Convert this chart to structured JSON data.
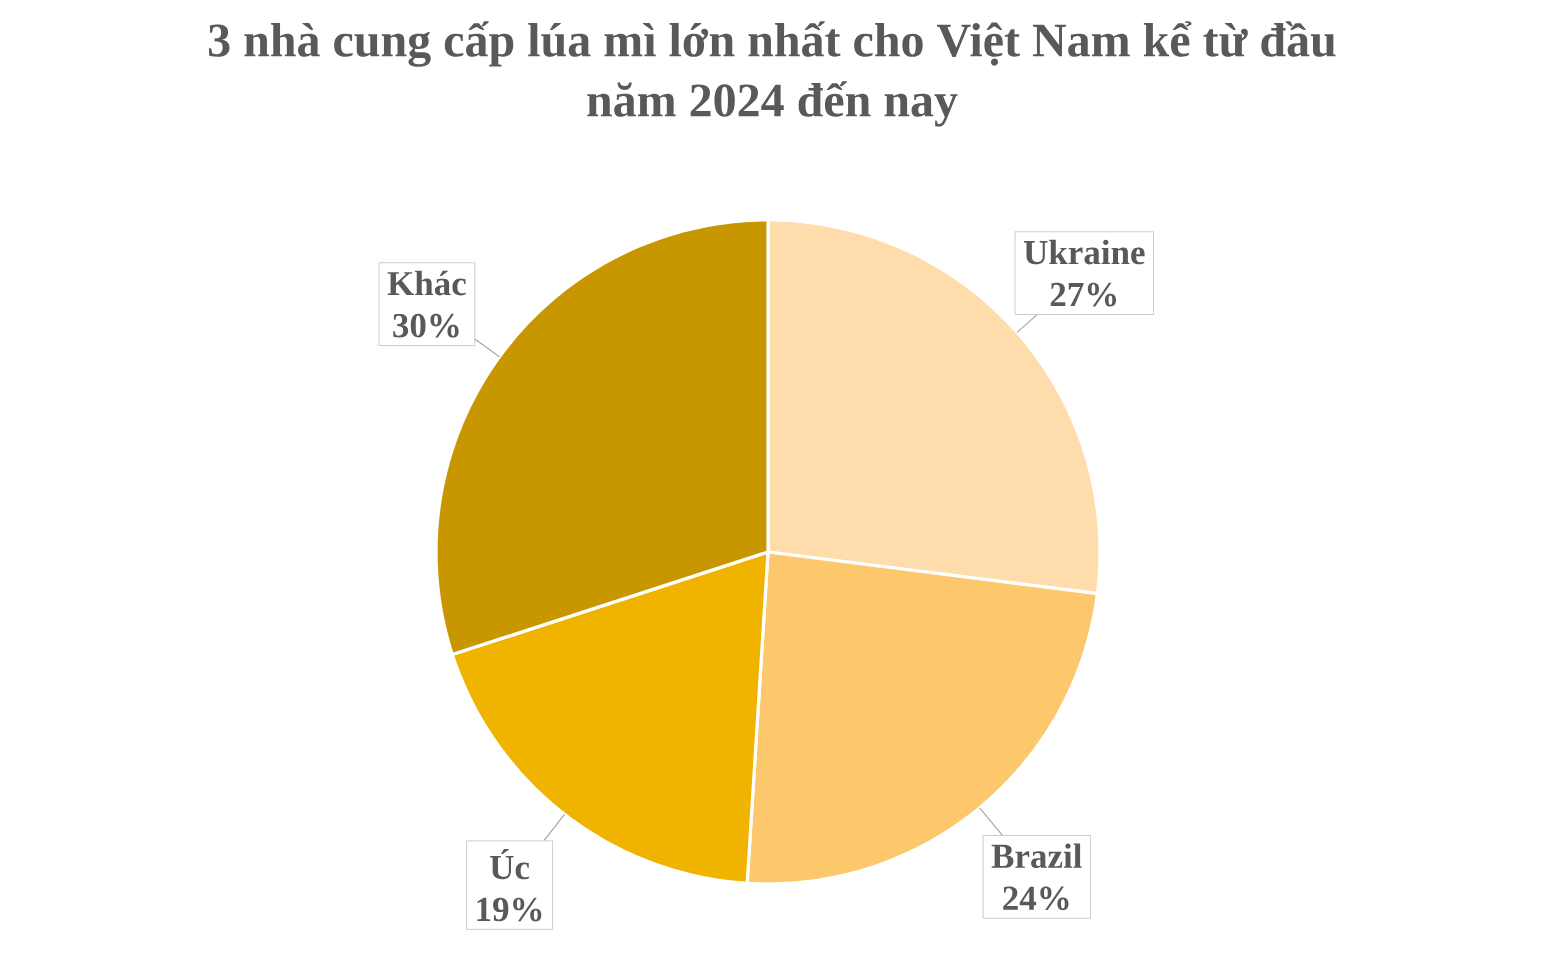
{
  "chart_data": {
    "type": "pie",
    "title": "3 nhà cung cấp lúa mì lớn nhất cho Việt Nam kể từ đầu năm 2024 đến nay",
    "categories": [
      "Ukraine",
      "Brazil",
      "Úc",
      "Khác"
    ],
    "values": [
      27,
      24,
      19,
      30
    ],
    "colors": [
      "#fedcab",
      "#fdc76b",
      "#efb300",
      "#c89700"
    ],
    "value_labels": [
      "27%",
      "24%",
      "19%",
      "30%"
    ]
  }
}
